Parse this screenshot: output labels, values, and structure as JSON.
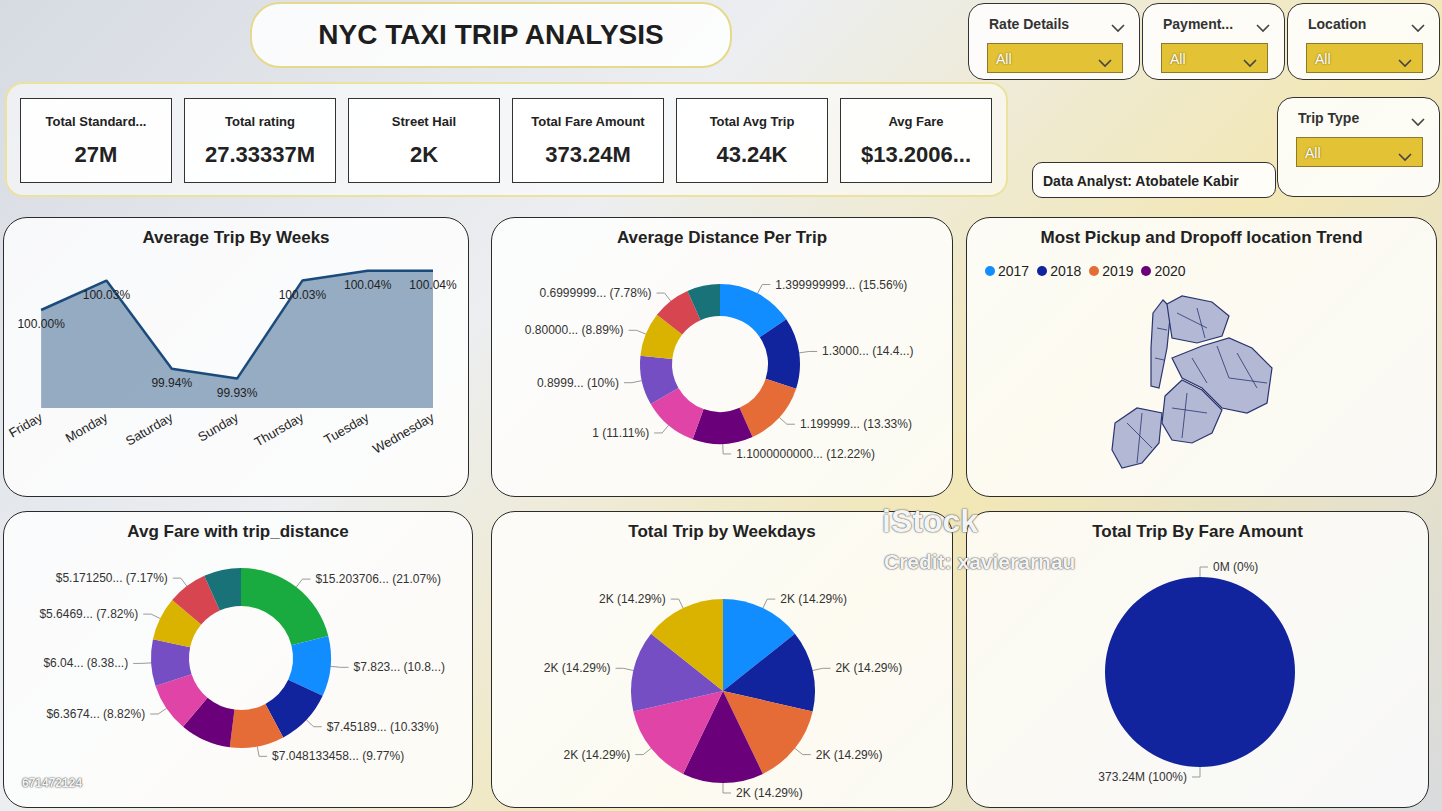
{
  "header": {
    "title": "NYC TAXI TRIP ANALYSIS",
    "analyst": "Data Analyst: Atobatele Kabir"
  },
  "filters": [
    {
      "label": "Rate Details",
      "value": "All"
    },
    {
      "label": "Payment...",
      "value": "All"
    },
    {
      "label": "Location",
      "value": "All"
    },
    {
      "label": "Trip Type",
      "value": "All"
    }
  ],
  "kpis": [
    {
      "label": "Total Standard...",
      "value": "27M"
    },
    {
      "label": "Total rating",
      "value": "27.33337M"
    },
    {
      "label": "Street Hail",
      "value": "2K"
    },
    {
      "label": "Total Fare Amount",
      "value": "373.24M"
    },
    {
      "label": "Total Avg Trip",
      "value": "43.24K"
    },
    {
      "label": "Avg Fare",
      "value": "$13.2006..."
    }
  ],
  "background_texts": [
    "iStock",
    "Credit: xavierarnau",
    "671472124"
  ],
  "chart_data": [
    {
      "type": "area",
      "title": "Average Trip By Weeks",
      "categories": [
        "Friday",
        "Monday",
        "Saturday",
        "Sunday",
        "Thursday",
        "Tuesday",
        "Wednesday"
      ],
      "values": [
        100.0,
        100.03,
        99.94,
        99.93,
        100.03,
        100.04,
        100.04
      ],
      "value_labels": [
        "100.00%",
        "100.03%",
        "99.94%",
        "99.93%",
        "100.03%",
        "100.04%",
        "100.04%"
      ],
      "color": "#1B4B7C",
      "ylim": [
        99.9,
        100.05
      ],
      "grid": false,
      "data_labels": true,
      "tick_labels": "x"
    },
    {
      "type": "donut",
      "title": "Average Distance Per Trip",
      "values": [
        1.399999999,
        1.3,
        1.199999,
        1.1,
        1,
        0.8999,
        0.8,
        0.6999999,
        0.6
      ],
      "value_labels": [
        "1.399999999... (15.56%)",
        "1.3000... (14.4...)",
        "1.199999... (13.33%)",
        "1.1000000000... (12.22%)",
        "1 (11.11%)",
        "0.8999... (10%)",
        "0.80000... (8.89%)",
        "0.6999999... (7.78%)",
        null
      ],
      "colors": [
        "#118DFF",
        "#12239E",
        "#E66C37",
        "#6B007B",
        "#E044A7",
        "#744EC2",
        "#D9B300",
        "#D64550",
        "#197278"
      ],
      "data_labels": true
    },
    {
      "type": "map",
      "title": "Most Pickup and Dropoff location Trend",
      "series": [
        {
          "name": "2017",
          "color": "#118DFF"
        },
        {
          "name": "2018",
          "color": "#12239E"
        },
        {
          "name": "2019",
          "color": "#E66C37"
        },
        {
          "name": "2020",
          "color": "#6B007B"
        }
      ],
      "legend": "top-left"
    },
    {
      "type": "donut",
      "title": "Avg Fare with trip_distance",
      "values": [
        15.203706,
        7.823,
        7.45189,
        7.048133458,
        6.6,
        6.3674,
        6.04,
        5.6469,
        5.17125,
        4.83
      ],
      "value_labels": [
        "$15.203706... (21.07%)",
        "$7.823... (10.8...)",
        "$7.45189... (10.33%)",
        "$7.048133458... (9.77%)",
        null,
        "$6.3674... (8.82%)",
        "$6.04... (8.38...)",
        "$5.6469... (7.82%)",
        "$5.171250... (7.17%)",
        null
      ],
      "colors": [
        "#1AAB40",
        "#118DFF",
        "#12239E",
        "#E66C37",
        "#6B007B",
        "#E044A7",
        "#744EC2",
        "#D9B300",
        "#D64550",
        "#197278"
      ],
      "data_labels": true
    },
    {
      "type": "pie",
      "title": "Total Trip by Weekdays",
      "values": [
        2000,
        2000,
        2000,
        2000,
        2000,
        2000,
        2000
      ],
      "value_labels": [
        "2K (14.29%)",
        "2K (14.29%)",
        "2K (14.29%)",
        "2K (14.29%)",
        "2K (14.29%)",
        "2K (14.29%)",
        "2K (14.29%)"
      ],
      "colors": [
        "#118DFF",
        "#12239E",
        "#E66C37",
        "#6B007B",
        "#E044A7",
        "#744EC2",
        "#D9B300"
      ],
      "data_labels": true
    },
    {
      "type": "pie",
      "title": "Total Trip By Fare Amount",
      "values": [
        373240000,
        0
      ],
      "value_labels": [
        "373.24M (100%)",
        "0M (0%)"
      ],
      "colors": [
        "#12239E",
        "#118DFF"
      ],
      "data_labels": true
    }
  ]
}
